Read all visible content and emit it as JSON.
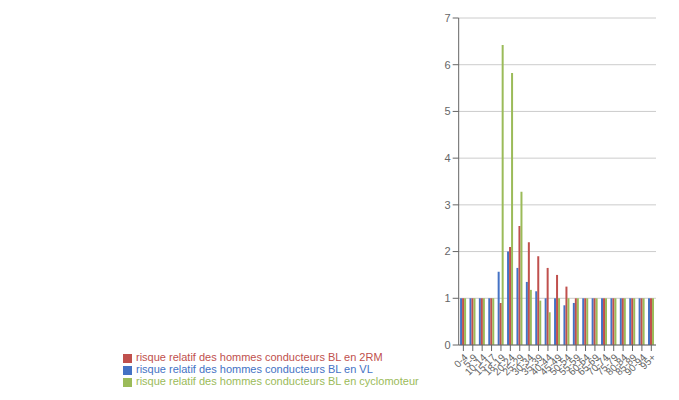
{
  "chart_data": {
    "type": "bar",
    "categories": [
      "0-4",
      "5-9",
      "10-14",
      "15-17",
      "18-19",
      "20-24",
      "25-29",
      "30-34",
      "35-39",
      "40-44",
      "45-49",
      "50-54",
      "55-59",
      "60-64",
      "65-69",
      "70-74",
      "75-79",
      "80-84",
      "85-89",
      "90-94",
      "95+"
    ],
    "series": [
      {
        "name": "risque relatif des hommes conducteurs BL en VL",
        "color": "#4472C4",
        "values": [
          1.0,
          1.0,
          1.0,
          1.0,
          1.57,
          2.0,
          1.65,
          1.35,
          1.15,
          1.0,
          1.0,
          0.85,
          0.9,
          1.0,
          1.0,
          1.0,
          1.0,
          1.0,
          1.0,
          1.0,
          1.0
        ]
      },
      {
        "name": "risque relatif des hommes conducteurs BL en 2RM",
        "color": "#C0504D",
        "values": [
          1.0,
          1.0,
          1.0,
          1.0,
          0.9,
          2.1,
          2.55,
          2.2,
          1.9,
          1.65,
          1.5,
          1.25,
          1.0,
          1.0,
          1.0,
          1.0,
          1.0,
          1.0,
          1.0,
          1.0,
          1.0
        ]
      },
      {
        "name": "risque relatif des hommes conducteurs BL en cyclomoteur",
        "color": "#9BBB59",
        "values": [
          1.0,
          1.0,
          1.0,
          1.0,
          6.42,
          5.82,
          3.28,
          1.18,
          0.95,
          0.7,
          1.0,
          1.0,
          1.0,
          1.0,
          1.0,
          1.0,
          1.0,
          1.0,
          1.0,
          1.0,
          1.0
        ]
      }
    ],
    "ylim": [
      0,
      7
    ],
    "yticks": [
      0,
      1,
      2,
      3,
      4,
      5,
      6,
      7
    ],
    "grid": true,
    "legend": "bottom"
  }
}
